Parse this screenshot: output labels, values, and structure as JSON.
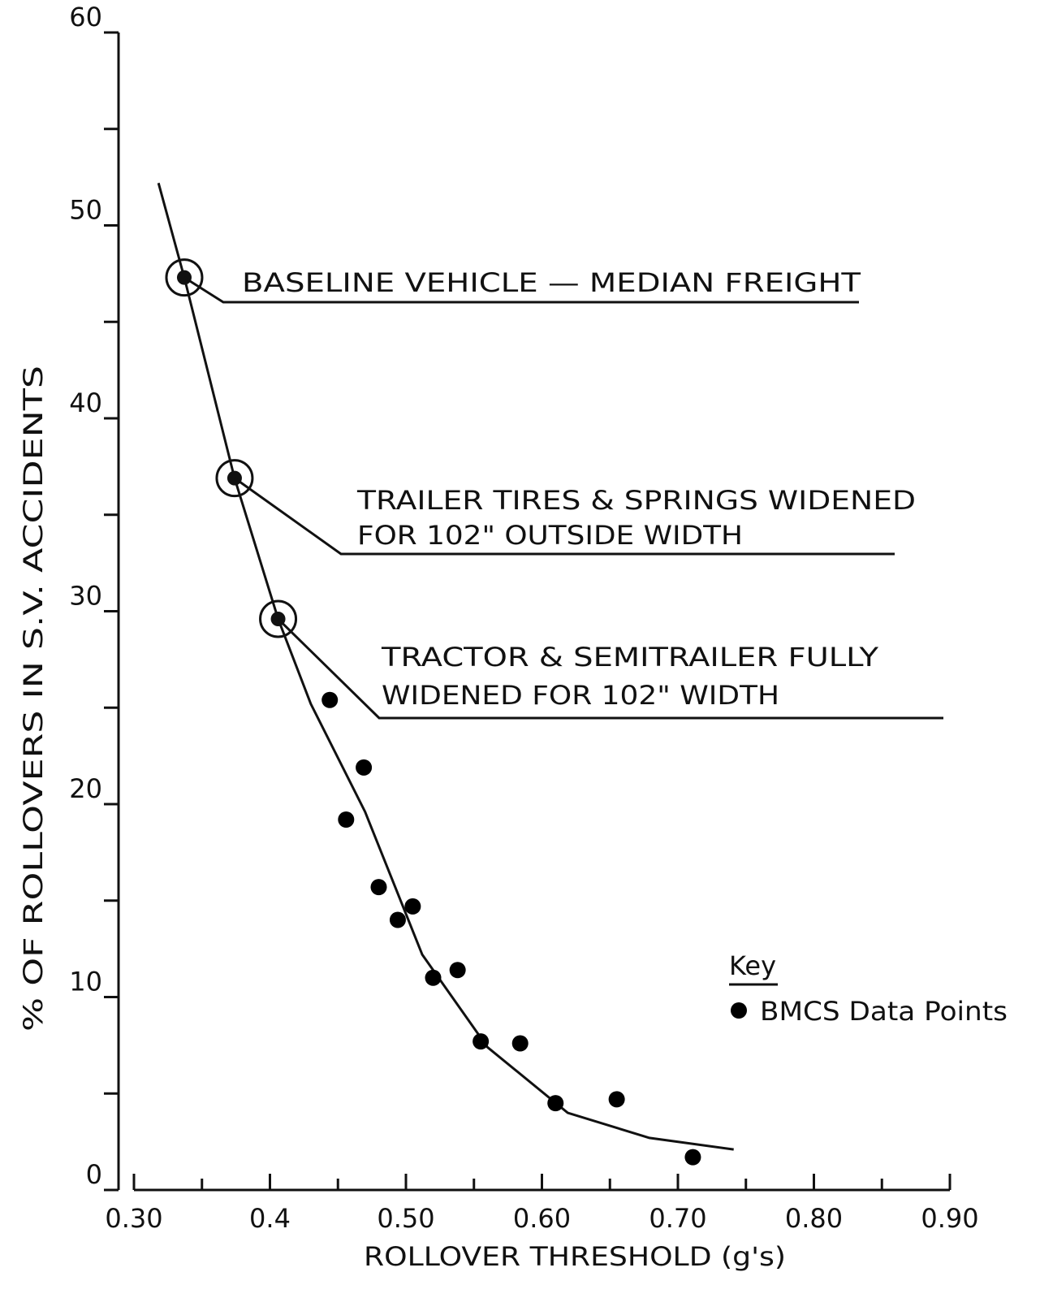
{
  "chart_data": {
    "type": "scatter",
    "xlabel": "ROLLOVER THRESHOLD (g's)",
    "ylabel": "% OF ROLLOVERS IN S.V. ACCIDENTS",
    "xlim": [
      0.3,
      0.9
    ],
    "ylim": [
      0,
      60
    ],
    "xticks": [
      {
        "value": 0.3,
        "label": "0.30"
      },
      0.4,
      {
        "value": 0.5,
        "label": "0.50"
      },
      {
        "value": 0.6,
        "label": "0.60"
      },
      {
        "value": 0.7,
        "label": "0.70"
      },
      {
        "value": 0.8,
        "label": "0.80"
      },
      {
        "value": 0.9,
        "label": "0.90"
      }
    ],
    "x_minor_ticks": [
      0.35,
      0.45,
      0.55,
      0.65,
      0.75,
      0.85
    ],
    "yticks": [
      0,
      10,
      20,
      30,
      40,
      50,
      60
    ],
    "y_minor_ticks": [
      5,
      15,
      25,
      35,
      45,
      55
    ],
    "series": [
      {
        "name": "BMCS Data Points",
        "color": "#000000",
        "x": [
          0.444,
          0.469,
          0.456,
          0.48,
          0.505,
          0.494,
          0.52,
          0.538,
          0.555,
          0.584,
          0.61,
          0.655,
          0.711
        ],
        "values": [
          25.4,
          21.9,
          19.2,
          15.7,
          14.7,
          14.0,
          11.0,
          11.4,
          7.7,
          7.6,
          4.5,
          4.7,
          1.7
        ]
      }
    ],
    "curve": {
      "x": [
        0.318,
        0.337,
        0.374,
        0.406,
        0.43,
        0.47,
        0.512,
        0.56,
        0.619,
        0.679,
        0.741
      ],
      "values": [
        52.2,
        47.3,
        36.9,
        29.6,
        25.2,
        19.6,
        12.2,
        7.4,
        4.0,
        2.7,
        2.1
      ]
    },
    "annotations": [
      {
        "lines": [
          "BASELINE  VEHICLE — MEDIAN FREIGHT"
        ],
        "x": 0.337,
        "y": 47.3
      },
      {
        "lines": [
          "TRAILER TIRES & SPRINGS WIDENED",
          "FOR 102\" OUTSIDE WIDTH"
        ],
        "x": 0.374,
        "y": 36.9
      },
      {
        "lines": [
          "TRACTOR & SEMITRAILER FULLY",
          "WIDENED FOR 102\" WIDTH"
        ],
        "x": 0.406,
        "y": 29.6
      }
    ],
    "legend_title": "Key",
    "legend": "bottom-right"
  }
}
